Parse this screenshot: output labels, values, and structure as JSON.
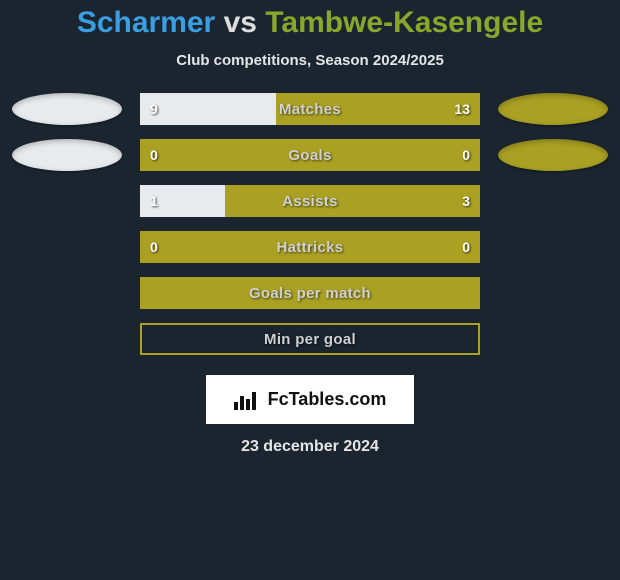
{
  "title_text": "Scharmer vs Tambwe-Kasengele",
  "subtitle_text": "Club competitions, Season 2024/2025",
  "colors": {
    "background": "#1a2530",
    "player1": "#e8ebee",
    "player2": "#aaa023",
    "bar_track": "#aaa023",
    "label_text": "#d0d0d0",
    "value_text": "#ffffff",
    "title_p1": "#3a9ee0",
    "title_p2": "#8aa62b"
  },
  "branding_text": "FcTables.com",
  "date_text": "23 december 2024",
  "stats": [
    {
      "label": "Matches",
      "left_val": "9",
      "right_val": "13",
      "left_pct": 40,
      "right_pct": 60,
      "with_ovals": true,
      "border_only": false
    },
    {
      "label": "Goals",
      "left_val": "0",
      "right_val": "0",
      "left_pct": 0,
      "right_pct": 0,
      "with_ovals": true,
      "border_only": false
    },
    {
      "label": "Assists",
      "left_val": "1",
      "right_val": "3",
      "left_pct": 25,
      "right_pct": 75,
      "with_ovals": false,
      "border_only": false
    },
    {
      "label": "Hattricks",
      "left_val": "0",
      "right_val": "0",
      "left_pct": 0,
      "right_pct": 0,
      "with_ovals": false,
      "border_only": false
    },
    {
      "label": "Goals per match",
      "left_val": "",
      "right_val": "",
      "left_pct": 0,
      "right_pct": 0,
      "with_ovals": false,
      "border_only": false
    },
    {
      "label": "Min per goal",
      "left_val": "",
      "right_val": "",
      "left_pct": 0,
      "right_pct": 0,
      "with_ovals": false,
      "border_only": true
    }
  ]
}
